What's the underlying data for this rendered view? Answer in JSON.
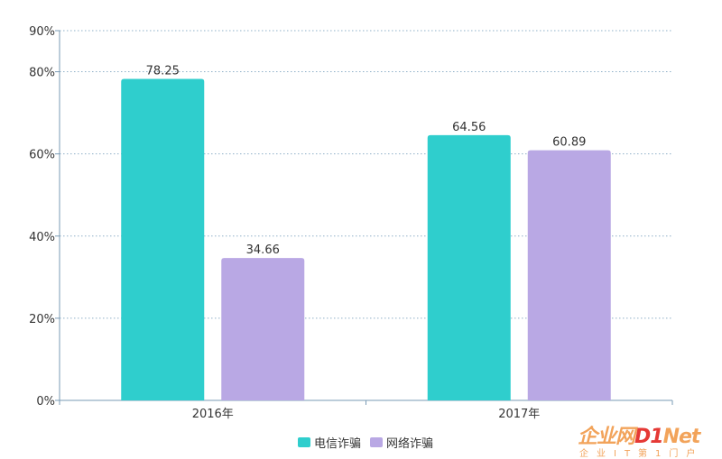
{
  "chart_data": {
    "type": "bar",
    "categories": [
      "2016年",
      "2017年"
    ],
    "series": [
      {
        "name": "电信诈骗",
        "values": [
          78.25,
          64.56
        ],
        "color": "#2fcecd"
      },
      {
        "name": "网络诈骗",
        "values": [
          34.66,
          60.89
        ],
        "color": "#b9a8e4"
      }
    ],
    "y_ticks": [
      "0%",
      "20%",
      "40%",
      "60%",
      "80%",
      "90%"
    ],
    "y_tick_values": [
      0,
      20,
      40,
      60,
      80,
      90
    ],
    "ylim": [
      0,
      90
    ],
    "grid": true,
    "legend_position": "bottom-center"
  },
  "watermark": {
    "title_a": "企业网",
    "title_b": "D1",
    "title_c": "Net",
    "subtitle": "企业IT第1门户"
  }
}
